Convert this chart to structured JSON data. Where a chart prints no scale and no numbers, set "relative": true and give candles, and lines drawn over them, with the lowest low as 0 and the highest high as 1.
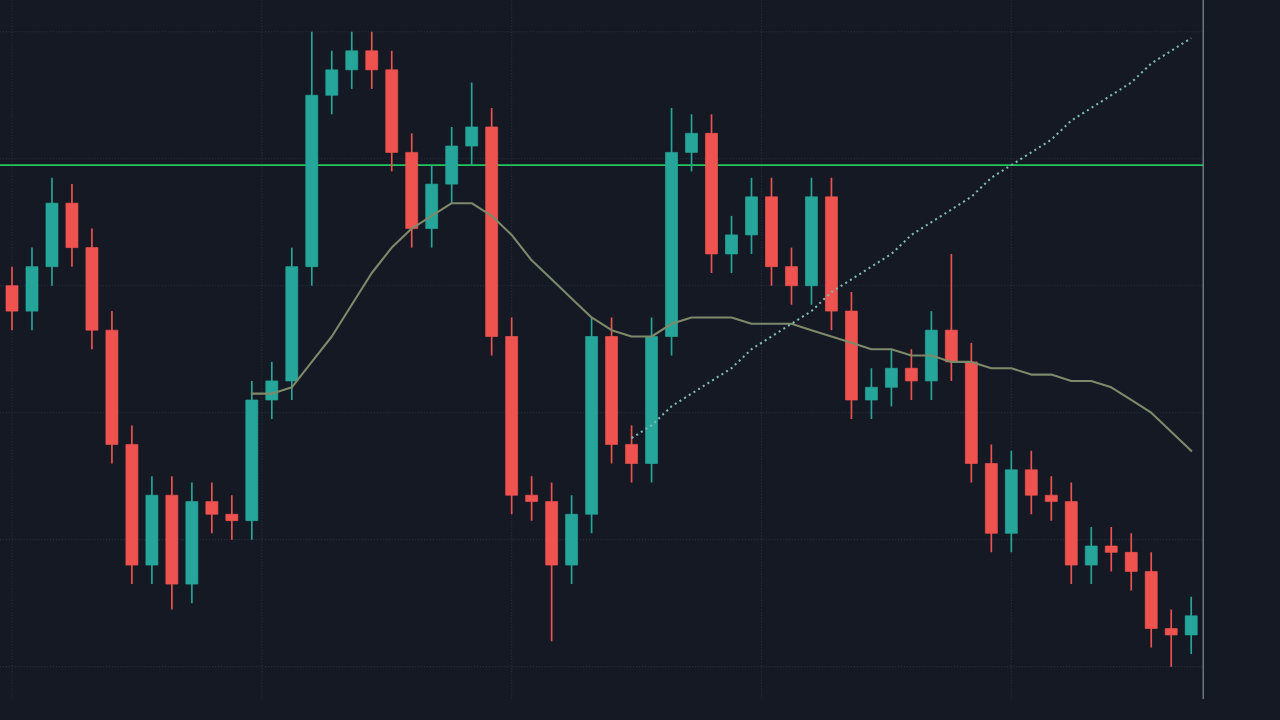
{
  "chart_data": {
    "type": "candlestick",
    "relative": true,
    "grid": true,
    "categories": [
      null,
      null,
      null,
      null,
      null,
      null,
      null,
      null,
      null,
      null,
      null,
      null,
      null,
      null,
      null,
      null,
      null,
      null,
      null,
      null,
      null,
      null,
      null,
      null,
      null,
      null,
      null,
      null,
      null,
      null,
      null,
      null,
      null,
      null,
      null,
      null,
      null,
      null,
      null,
      null,
      null,
      null,
      null,
      null,
      null,
      null,
      null,
      null,
      null,
      null,
      null,
      null,
      null,
      null,
      null,
      null,
      null,
      null,
      null,
      null
    ],
    "ohlc": [
      [
        0.6,
        0.63,
        0.53,
        0.56
      ],
      [
        0.56,
        0.66,
        0.53,
        0.63
      ],
      [
        0.63,
        0.77,
        0.6,
        0.73
      ],
      [
        0.73,
        0.76,
        0.63,
        0.66
      ],
      [
        0.66,
        0.69,
        0.5,
        0.53
      ],
      [
        0.53,
        0.56,
        0.32,
        0.35
      ],
      [
        0.35,
        0.38,
        0.13,
        0.16
      ],
      [
        0.16,
        0.3,
        0.13,
        0.27
      ],
      [
        0.27,
        0.3,
        0.09,
        0.13
      ],
      [
        0.13,
        0.29,
        0.1,
        0.26
      ],
      [
        0.26,
        0.29,
        0.21,
        0.24
      ],
      [
        0.24,
        0.27,
        0.2,
        0.23
      ],
      [
        0.23,
        0.45,
        0.2,
        0.42
      ],
      [
        0.42,
        0.48,
        0.39,
        0.45
      ],
      [
        0.45,
        0.66,
        0.42,
        0.63
      ],
      [
        0.63,
        1.0,
        0.6,
        0.9
      ],
      [
        0.9,
        0.97,
        0.87,
        0.94
      ],
      [
        0.94,
        1.0,
        0.91,
        0.97
      ],
      [
        0.97,
        1.0,
        0.91,
        0.94
      ],
      [
        0.94,
        0.97,
        0.78,
        0.81
      ],
      [
        0.81,
        0.84,
        0.66,
        0.69
      ],
      [
        0.69,
        0.79,
        0.66,
        0.76
      ],
      [
        0.76,
        0.85,
        0.73,
        0.82
      ],
      [
        0.82,
        0.92,
        0.79,
        0.85
      ],
      [
        0.85,
        0.88,
        0.49,
        0.52
      ],
      [
        0.52,
        0.55,
        0.24,
        0.27
      ],
      [
        0.27,
        0.3,
        0.23,
        0.26
      ],
      [
        0.26,
        0.29,
        0.04,
        0.16
      ],
      [
        0.16,
        0.27,
        0.13,
        0.24
      ],
      [
        0.24,
        0.55,
        0.21,
        0.52
      ],
      [
        0.52,
        0.55,
        0.32,
        0.35
      ],
      [
        0.35,
        0.38,
        0.29,
        0.32
      ],
      [
        0.32,
        0.55,
        0.29,
        0.52
      ],
      [
        0.52,
        0.88,
        0.49,
        0.81
      ],
      [
        0.81,
        0.87,
        0.78,
        0.84
      ],
      [
        0.84,
        0.87,
        0.62,
        0.65
      ],
      [
        0.65,
        0.71,
        0.62,
        0.68
      ],
      [
        0.68,
        0.77,
        0.65,
        0.74
      ],
      [
        0.74,
        0.77,
        0.6,
        0.63
      ],
      [
        0.63,
        0.66,
        0.57,
        0.6
      ],
      [
        0.6,
        0.77,
        0.57,
        0.74
      ],
      [
        0.74,
        0.77,
        0.53,
        0.56
      ],
      [
        0.56,
        0.59,
        0.39,
        0.42
      ],
      [
        0.42,
        0.47,
        0.39,
        0.44
      ],
      [
        0.44,
        0.5,
        0.41,
        0.47
      ],
      [
        0.47,
        0.5,
        0.42,
        0.45
      ],
      [
        0.45,
        0.56,
        0.42,
        0.53
      ],
      [
        0.53,
        0.65,
        0.45,
        0.48
      ],
      [
        0.48,
        0.51,
        0.29,
        0.32
      ],
      [
        0.32,
        0.35,
        0.18,
        0.21
      ],
      [
        0.21,
        0.34,
        0.18,
        0.31
      ],
      [
        0.31,
        0.34,
        0.24,
        0.27
      ],
      [
        0.27,
        0.3,
        0.23,
        0.26
      ],
      [
        0.26,
        0.29,
        0.13,
        0.16
      ],
      [
        0.16,
        0.22,
        0.13,
        0.19
      ],
      [
        0.19,
        0.22,
        0.15,
        0.18
      ],
      [
        0.18,
        0.21,
        0.12,
        0.15
      ],
      [
        0.15,
        0.18,
        0.03,
        0.06
      ],
      [
        0.06,
        0.09,
        0.0,
        0.05
      ],
      [
        0.05,
        0.11,
        0.02,
        0.08
      ]
    ],
    "colors": [
      "#ef5350",
      "#26a69a",
      "#26a69a",
      "#ef5350",
      "#ef5350",
      "#ef5350",
      "#ef5350",
      "#26a69a",
      "#ef5350",
      "#26a69a",
      "#ef5350",
      "#ef5350",
      "#26a69a",
      "#26a69a",
      "#26a69a",
      "#26a69a",
      "#26a69a",
      "#26a69a",
      "#ef5350",
      "#ef5350",
      "#ef5350",
      "#26a69a",
      "#26a69a",
      "#26a69a",
      "#ef5350",
      "#ef5350",
      "#ef5350",
      "#ef5350",
      "#26a69a",
      "#26a69a",
      "#ef5350",
      "#ef5350",
      "#26a69a",
      "#26a69a",
      "#26a69a",
      "#ef5350",
      "#26a69a",
      "#26a69a",
      "#ef5350",
      "#ef5350",
      "#26a69a",
      "#ef5350",
      "#ef5350",
      "#26a69a",
      "#26a69a",
      "#ef5350",
      "#26a69a",
      "#ef5350",
      "#ef5350",
      "#ef5350",
      "#26a69a",
      "#ef5350",
      "#ef5350",
      "#ef5350",
      "#26a69a",
      "#ef5350",
      "#ef5350",
      "#ef5350",
      "#ef5350",
      "#26a69a"
    ],
    "series": [
      {
        "type": "line",
        "color": "#7d8a6a",
        "values": [
          null,
          null,
          null,
          null,
          null,
          null,
          null,
          null,
          null,
          null,
          null,
          null,
          0.43,
          0.43,
          0.44,
          0.48,
          0.52,
          0.57,
          0.62,
          0.66,
          0.69,
          0.71,
          0.73,
          0.73,
          0.71,
          0.68,
          0.64,
          0.61,
          0.58,
          0.55,
          0.53,
          0.52,
          0.52,
          0.54,
          0.55,
          0.55,
          0.55,
          0.54,
          0.54,
          0.54,
          0.53,
          0.52,
          0.51,
          0.5,
          0.5,
          0.49,
          0.49,
          0.48,
          0.48,
          0.47,
          0.47,
          0.46,
          0.46,
          0.45,
          0.45,
          0.44,
          0.42,
          0.4,
          0.37,
          0.34
        ]
      },
      {
        "type": "line",
        "color": "#7fb8b0",
        "line_style": "dotted",
        "values": [
          null,
          null,
          null,
          null,
          null,
          null,
          null,
          null,
          null,
          null,
          null,
          null,
          null,
          null,
          null,
          null,
          null,
          null,
          null,
          null,
          null,
          null,
          null,
          null,
          null,
          null,
          null,
          null,
          null,
          null,
          null,
          0.36,
          0.38,
          0.41,
          0.43,
          0.45,
          0.47,
          0.5,
          0.52,
          0.54,
          0.56,
          0.59,
          0.61,
          0.63,
          0.65,
          0.68,
          0.7,
          0.72,
          0.74,
          0.77,
          0.79,
          0.81,
          0.83,
          0.86,
          0.88,
          0.9,
          0.92,
          0.95,
          0.97,
          0.99
        ]
      }
    ],
    "ref_lines": [
      {
        "axis": "y",
        "value": 0.79,
        "color": "#22c55e"
      }
    ]
  }
}
